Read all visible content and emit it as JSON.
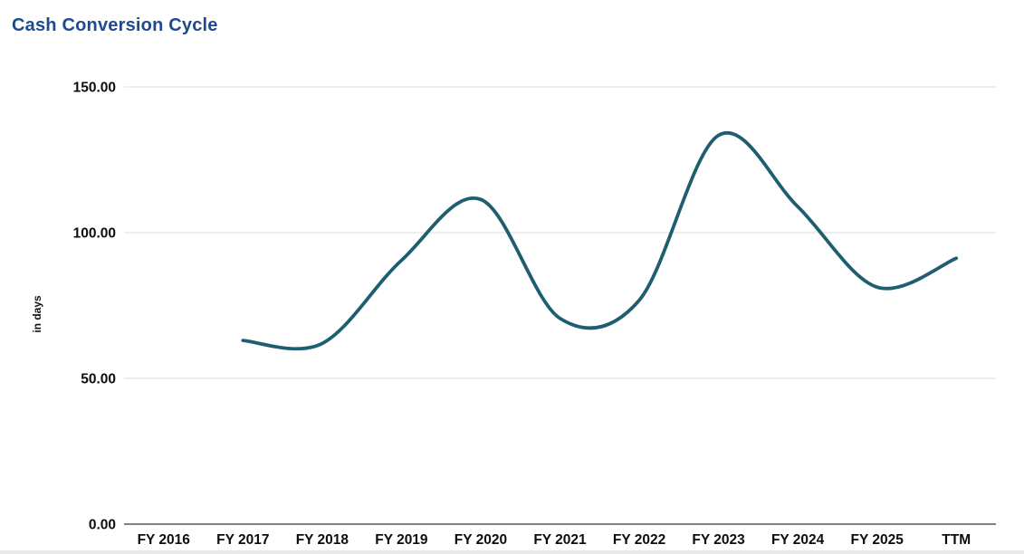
{
  "chart_data": {
    "type": "line",
    "title": "Cash Conversion Cycle",
    "xlabel": "",
    "ylabel": "in days",
    "categories": [
      "FY 2016",
      "FY 2017",
      "FY 2018",
      "FY 2019",
      "FY 2020",
      "FY 2021",
      "FY 2022",
      "FY 2023",
      "FY 2024",
      "FY 2025",
      "TTM"
    ],
    "series": [
      {
        "name": "Cash Conversion Cycle",
        "values": [
          null,
          63.0,
          62.0,
          90.5,
          111.4,
          70.6,
          76.8,
          133.4,
          108.9,
          81.3,
          91.2
        ]
      }
    ],
    "ylim": [
      0,
      150
    ],
    "yticks": [
      {
        "value": 150,
        "label": "150.00"
      },
      {
        "value": 100,
        "label": "100.00"
      },
      {
        "value": 50,
        "label": "50.00"
      },
      {
        "value": 0,
        "label": "0.00"
      }
    ],
    "grid": true,
    "legend": "none",
    "smooth": true,
    "colors": {
      "line": "#1f5e70",
      "title": "#1e4a8f",
      "gridline": "#dcdcdc",
      "axis_line": "#595959",
      "tick_text": "#0d0d0d"
    }
  }
}
